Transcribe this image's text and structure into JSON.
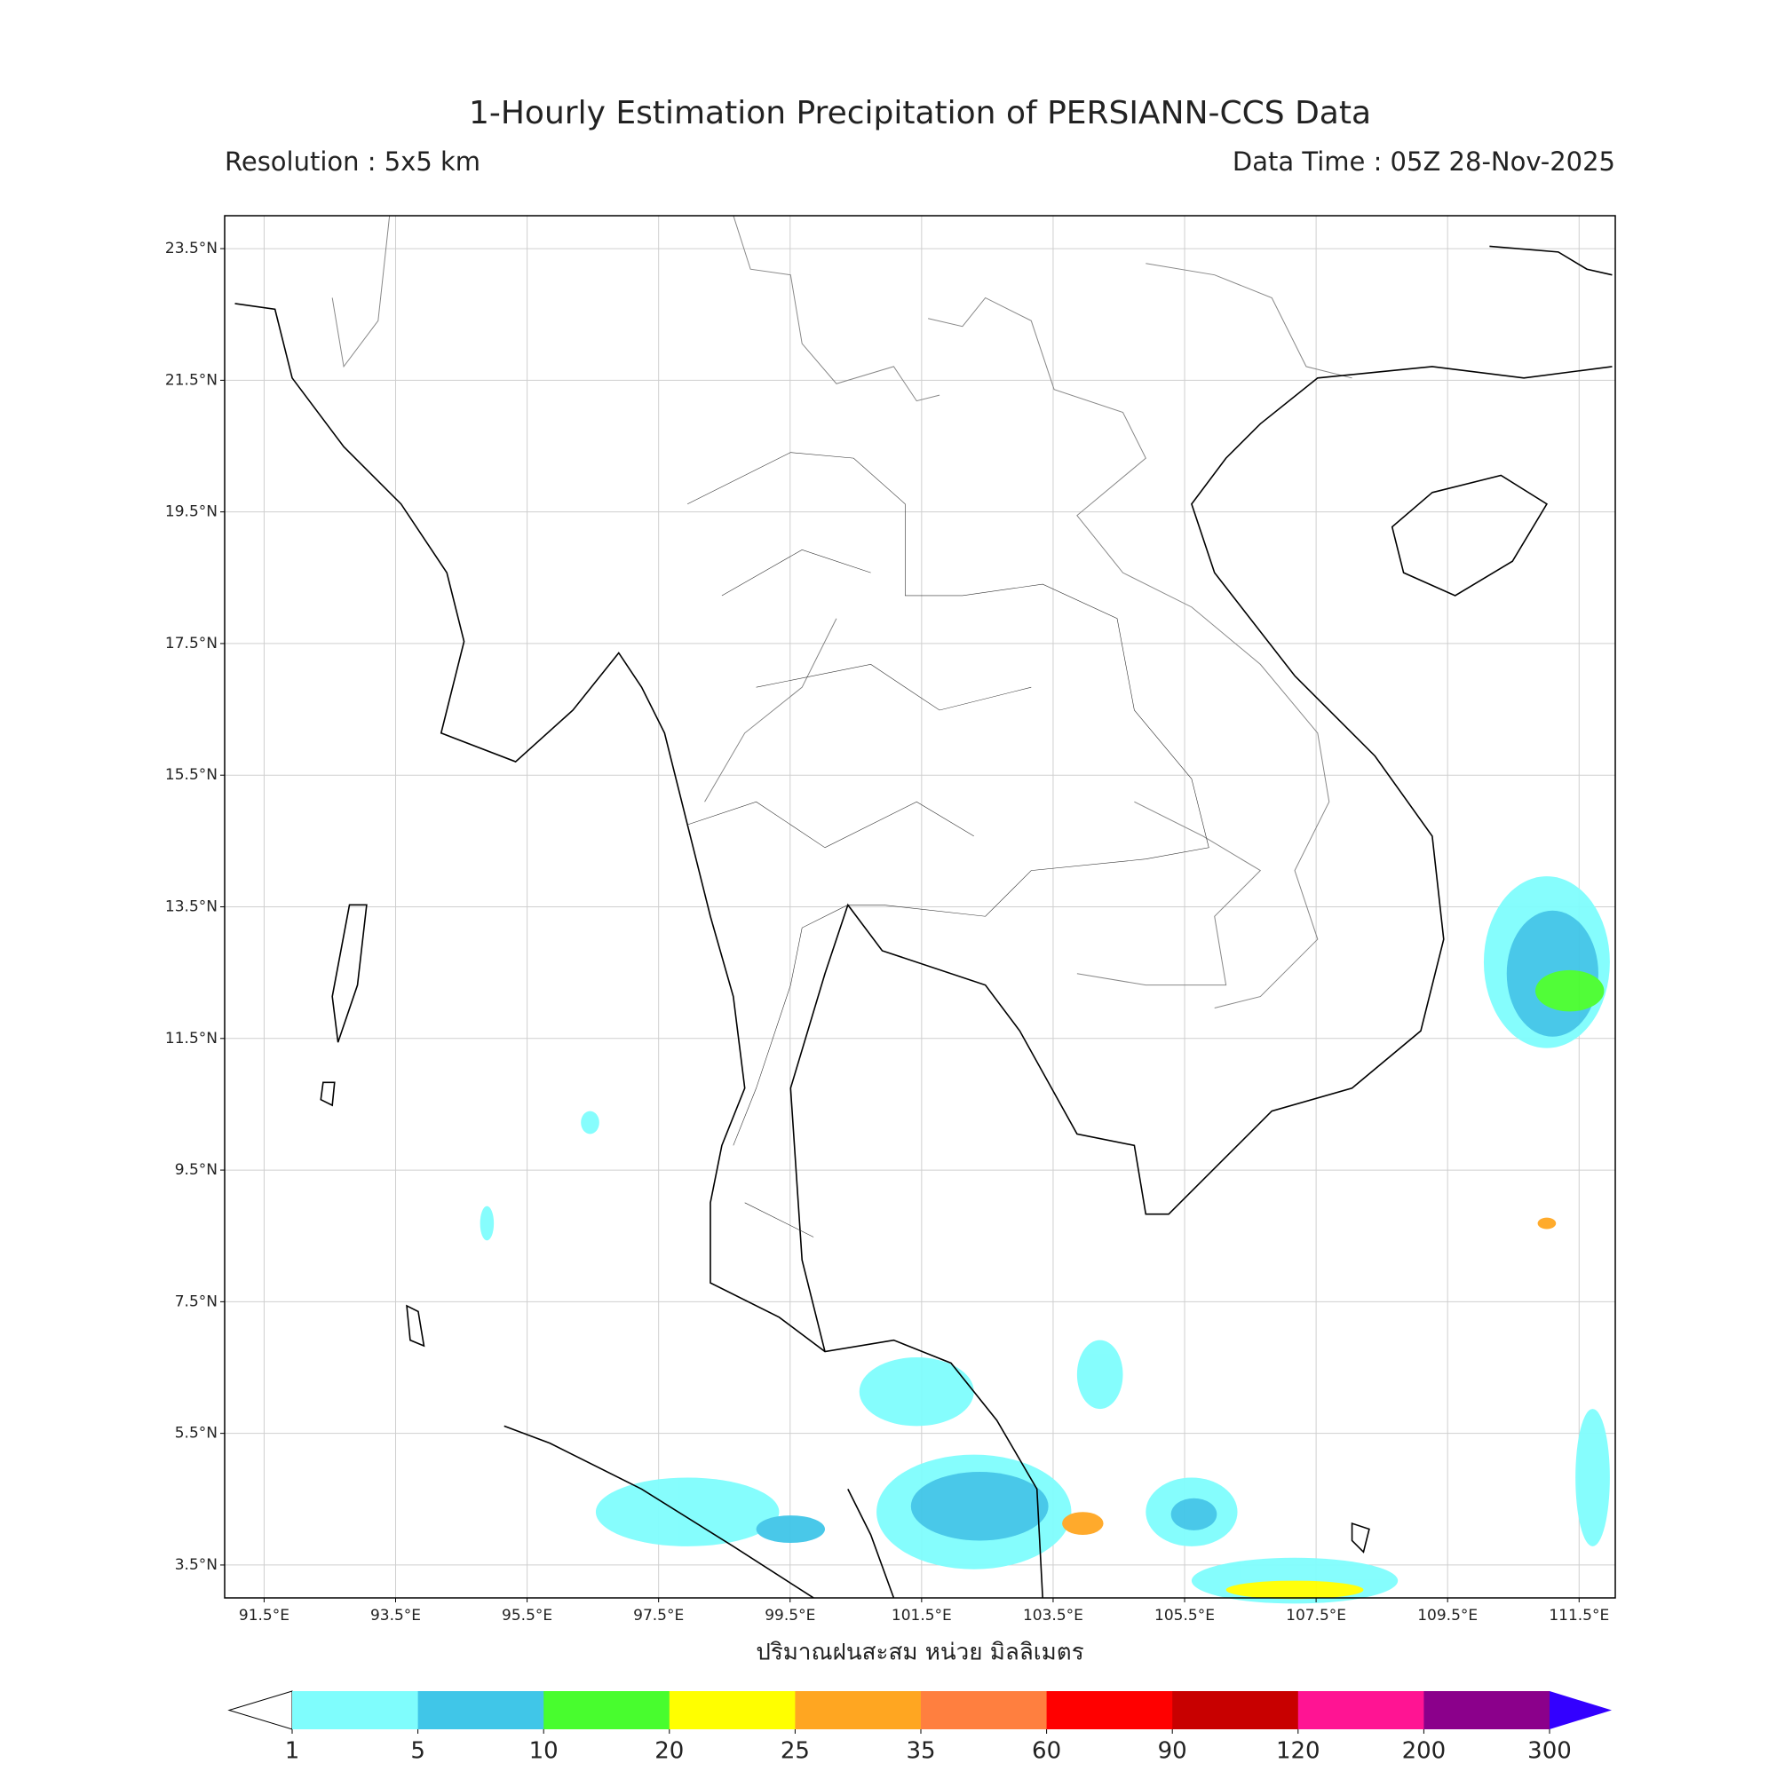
{
  "header": {
    "title": "1-Hourly Estimation Precipitation of PERSIANN-CCS Data",
    "resolution": "Resolution : 5x5 km",
    "data_time": "Data Time : 05Z 28-Nov-2025"
  },
  "map": {
    "lon_lim": [
      90.9,
      112.05
    ],
    "lat_lim": [
      3.0,
      24.0
    ],
    "grid": true,
    "lat_ticks": [
      {
        "value": 23.5,
        "label": "23.5°N"
      },
      {
        "value": 21.5,
        "label": "21.5°N"
      },
      {
        "value": 19.5,
        "label": "19.5°N"
      },
      {
        "value": 17.5,
        "label": "17.5°N"
      },
      {
        "value": 15.5,
        "label": "15.5°N"
      },
      {
        "value": 13.5,
        "label": "13.5°N"
      },
      {
        "value": 11.5,
        "label": "11.5°N"
      },
      {
        "value": 9.5,
        "label": "9.5°N"
      },
      {
        "value": 7.5,
        "label": "7.5°N"
      },
      {
        "value": 5.5,
        "label": "5.5°N"
      },
      {
        "value": 3.5,
        "label": "3.5°N"
      }
    ],
    "lon_ticks": [
      {
        "value": 91.5,
        "label": "91.5°E"
      },
      {
        "value": 93.5,
        "label": "93.5°E"
      },
      {
        "value": 95.5,
        "label": "95.5°E"
      },
      {
        "value": 97.5,
        "label": "97.5°E"
      },
      {
        "value": 99.5,
        "label": "99.5°E"
      },
      {
        "value": 101.5,
        "label": "101.5°E"
      },
      {
        "value": 103.5,
        "label": "103.5°E"
      },
      {
        "value": 105.5,
        "label": "105.5°E"
      },
      {
        "value": 107.5,
        "label": "107.5°E"
      },
      {
        "value": 109.5,
        "label": "109.5°E"
      },
      {
        "value": 111.5,
        "label": "111.5°E"
      }
    ],
    "xlabel": "ปริมาณฝนสะสม หน่วย มิลลิเมตร"
  },
  "colorbar": {
    "ticks": [
      1,
      5,
      10,
      20,
      25,
      35,
      60,
      90,
      120,
      200,
      300
    ],
    "colors": [
      "#7ffdfd",
      "#40c6e8",
      "#48fd2e",
      "#ffff00",
      "#ffa621",
      "#ff7f3f",
      "#ff0000",
      "#c80000",
      "#ff1493",
      "#8b008b"
    ],
    "under_color": "#ffffff",
    "over_color": "#3300ff"
  }
}
